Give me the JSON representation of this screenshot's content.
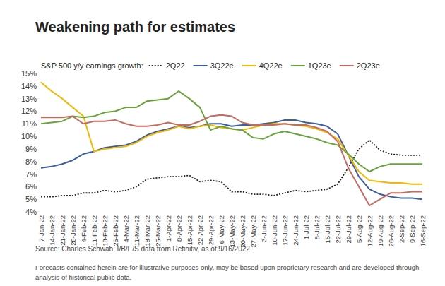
{
  "chart_data": {
    "type": "line",
    "title": "Weakening path for estimates",
    "legend_title": "S&P 500 y/y earnings growth:",
    "legend": "top",
    "grid": false,
    "categories": [
      "7-Jan-22",
      "14-Jan-22",
      "21-Jan-22",
      "28-Jan-22",
      "4-Feb-22",
      "11-Feb-22",
      "18-Feb-22",
      "25-Feb-22",
      "4-Mar-22",
      "11-Mar-22",
      "18-Mar-22",
      "25-Mar-22",
      "1-Apr-22",
      "8-Apr-22",
      "15-Apr-22",
      "22-Apr-22",
      "29-Apr-22",
      "6-May-22",
      "13-May-22",
      "20-May-22",
      "27-May-22",
      "3-Jun-22",
      "10-Jun-22",
      "17-Jun-22",
      "24-Jun-22",
      "1-Jul-22",
      "8-Jul-22",
      "15-Jul-22",
      "22-Jul-22",
      "29-Jul-22",
      "5-Aug-22",
      "12-Aug-22",
      "19-Aug-22",
      "26-Aug-22",
      "2-Sep-22",
      "9-Sep-22",
      "16-Sep-22"
    ],
    "series": [
      {
        "name": "2Q22",
        "color": "#222222",
        "line_style": "dotted",
        "values": [
          5.2,
          5.2,
          5.3,
          5.3,
          5.5,
          5.5,
          5.7,
          5.6,
          5.7,
          6.0,
          6.6,
          6.7,
          6.8,
          6.8,
          6.9,
          6.4,
          6.5,
          6.4,
          5.6,
          5.6,
          5.4,
          5.4,
          5.3,
          5.5,
          5.7,
          5.6,
          5.7,
          5.8,
          6.2,
          7.5,
          9.0,
          9.7,
          8.9,
          8.6,
          8.5,
          8.5,
          8.5
        ]
      },
      {
        "name": "3Q22e",
        "color": "#3d5f9e",
        "line_style": "solid",
        "values": [
          7.5,
          7.6,
          7.8,
          8.1,
          8.6,
          8.8,
          9.1,
          9.2,
          9.3,
          9.6,
          10.1,
          10.4,
          10.6,
          10.8,
          10.7,
          10.8,
          11.0,
          11.0,
          10.8,
          10.9,
          10.9,
          11.0,
          11.1,
          11.3,
          11.3,
          11.1,
          11.0,
          10.8,
          10.2,
          8.5,
          6.8,
          5.8,
          5.4,
          5.2,
          5.1,
          5.1,
          5.0
        ]
      },
      {
        "name": "4Q22e",
        "color": "#f2b705",
        "line_style": "solid",
        "values": [
          14.3,
          13.6,
          13.0,
          12.3,
          11.6,
          8.8,
          9.0,
          9.1,
          9.2,
          9.5,
          10.0,
          10.3,
          10.5,
          10.8,
          10.6,
          10.8,
          10.9,
          10.7,
          10.6,
          10.5,
          10.7,
          10.9,
          11.0,
          11.0,
          10.9,
          10.8,
          10.6,
          10.3,
          9.8,
          8.5,
          7.2,
          6.5,
          6.4,
          6.3,
          6.3,
          6.2,
          6.2
        ]
      },
      {
        "name": "1Q23e",
        "color": "#6aa33c",
        "line_style": "solid",
        "values": [
          11.0,
          11.1,
          11.2,
          11.6,
          11.5,
          11.6,
          11.9,
          12.0,
          12.3,
          12.3,
          12.8,
          12.9,
          13.0,
          13.6,
          13.0,
          12.3,
          10.5,
          10.8,
          10.6,
          10.5,
          9.9,
          9.8,
          10.2,
          10.4,
          10.2,
          10.0,
          9.8,
          9.5,
          9.3,
          8.6,
          7.8,
          7.2,
          7.6,
          7.8,
          7.8,
          7.8,
          7.8
        ]
      },
      {
        "name": "2Q23e",
        "color": "#c46b62",
        "line_style": "solid",
        "values": [
          11.5,
          11.5,
          11.5,
          11.6,
          11.0,
          11.2,
          11.2,
          11.3,
          11.0,
          10.8,
          10.8,
          10.9,
          11.1,
          10.9,
          10.9,
          11.2,
          11.6,
          11.7,
          11.6,
          11.1,
          10.9,
          10.9,
          10.9,
          11.0,
          10.9,
          10.9,
          10.7,
          10.4,
          9.6,
          7.5,
          6.0,
          4.5,
          5.0,
          5.5,
          5.5,
          5.6,
          5.6
        ]
      }
    ],
    "ylim": [
      4,
      15
    ],
    "yticks": [
      {
        "value": 4,
        "label": "4%"
      },
      {
        "value": 5,
        "label": "5%"
      },
      {
        "value": 6,
        "label": "6%"
      },
      {
        "value": 7,
        "label": "7%"
      },
      {
        "value": 8,
        "label": "8%"
      },
      {
        "value": 9,
        "label": "9%"
      },
      {
        "value": 10,
        "label": "10%"
      },
      {
        "value": 11,
        "label": "11%"
      },
      {
        "value": 12,
        "label": "12%"
      },
      {
        "value": 13,
        "label": "13%"
      },
      {
        "value": 14,
        "label": "14%"
      },
      {
        "value": 15,
        "label": "15%"
      }
    ],
    "source": "Source: Charles Schwab, I/B/E/S data from Refinitiv, as of 9/16/2022.",
    "notes": [
      "Forecasts contained herein are for illustrative purposes only, may be based upon proprietary research and are developed through",
      "analysis of historical public data."
    ]
  }
}
